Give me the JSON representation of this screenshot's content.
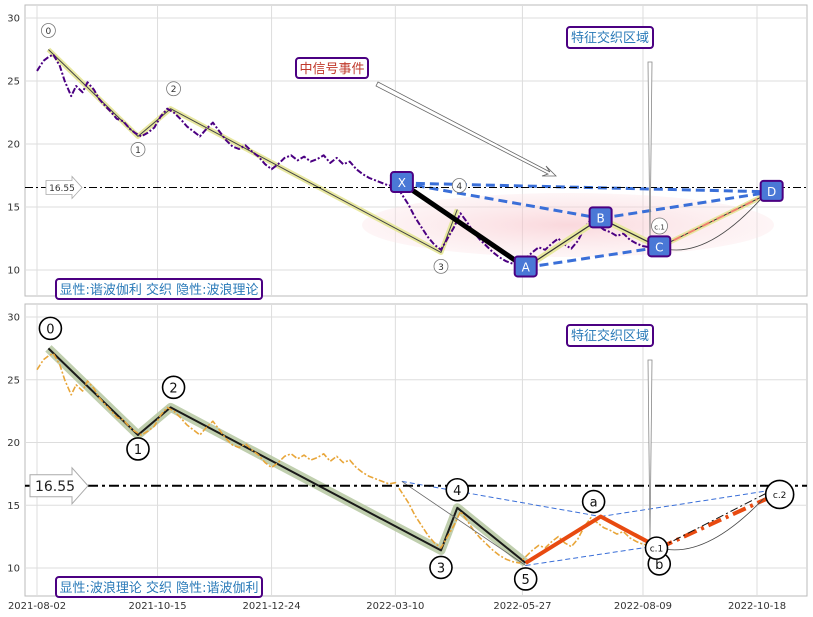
{
  "chart_data": {
    "type": "line",
    "x_ticks": [
      "2021-08-02",
      "2021-10-15",
      "2021-12-24",
      "2022-03-10",
      "2022-05-27",
      "2022-08-09",
      "2022-10-18"
    ],
    "ylim": [
      8,
      31
    ],
    "y_ticks": [
      10,
      15,
      20,
      25,
      30
    ],
    "grid": true,
    "reference_level": 16.55,
    "reference_label": "16.55",
    "price_series": [
      [
        "2021-08-02",
        25.8
      ],
      [
        "2021-08-06",
        26.6
      ],
      [
        "2021-08-09",
        26.9
      ],
      [
        "2021-08-12",
        27.1
      ],
      [
        "2021-08-16",
        26.2
      ],
      [
        "2021-08-19",
        25.0
      ],
      [
        "2021-08-23",
        23.8
      ],
      [
        "2021-08-26",
        24.6
      ],
      [
        "2021-08-30",
        24.1
      ],
      [
        "2021-09-02",
        24.9
      ],
      [
        "2021-09-06",
        24.3
      ],
      [
        "2021-09-09",
        23.6
      ],
      [
        "2021-09-13",
        23.0
      ],
      [
        "2021-09-16",
        22.6
      ],
      [
        "2021-09-20",
        22.0
      ],
      [
        "2021-09-24",
        21.8
      ],
      [
        "2021-09-28",
        21.2
      ],
      [
        "2021-10-01",
        20.9
      ],
      [
        "2021-10-05",
        20.6
      ],
      [
        "2021-10-09",
        20.9
      ],
      [
        "2021-10-13",
        21.3
      ],
      [
        "2021-10-17",
        22.2
      ],
      [
        "2021-10-21",
        22.8
      ],
      [
        "2021-10-25",
        22.5
      ],
      [
        "2021-10-29",
        22.0
      ],
      [
        "2021-11-02",
        21.4
      ],
      [
        "2021-11-06",
        21.0
      ],
      [
        "2021-11-10",
        20.6
      ],
      [
        "2021-11-14",
        21.2
      ],
      [
        "2021-11-18",
        21.7
      ],
      [
        "2021-11-22",
        21.0
      ],
      [
        "2021-11-26",
        20.3
      ],
      [
        "2021-11-30",
        19.8
      ],
      [
        "2021-12-04",
        19.6
      ],
      [
        "2021-12-08",
        19.9
      ],
      [
        "2021-12-12",
        19.4
      ],
      [
        "2021-12-16",
        19.0
      ],
      [
        "2021-12-20",
        18.4
      ],
      [
        "2021-12-24",
        18.0
      ],
      [
        "2021-12-28",
        18.4
      ],
      [
        "2022-01-01",
        18.9
      ],
      [
        "2022-01-05",
        19.1
      ],
      [
        "2022-01-09",
        18.7
      ],
      [
        "2022-01-13",
        19.0
      ],
      [
        "2022-01-17",
        18.6
      ],
      [
        "2022-01-21",
        18.8
      ],
      [
        "2022-01-25",
        19.1
      ],
      [
        "2022-01-29",
        18.5
      ],
      [
        "2022-02-02",
        18.9
      ],
      [
        "2022-02-06",
        18.4
      ],
      [
        "2022-02-10",
        18.6
      ],
      [
        "2022-02-14",
        18.0
      ],
      [
        "2022-02-18",
        17.6
      ],
      [
        "2022-02-22",
        17.3
      ],
      [
        "2022-02-26",
        17.1
      ],
      [
        "2022-03-02",
        16.9
      ],
      [
        "2022-03-06",
        16.7
      ],
      [
        "2022-03-10",
        16.8
      ],
      [
        "2022-03-14",
        16.0
      ],
      [
        "2022-03-18",
        15.2
      ],
      [
        "2022-03-22",
        14.2
      ],
      [
        "2022-03-26",
        13.4
      ],
      [
        "2022-03-30",
        12.6
      ],
      [
        "2022-04-03",
        12.0
      ],
      [
        "2022-04-07",
        11.6
      ],
      [
        "2022-04-11",
        12.5
      ],
      [
        "2022-04-15",
        13.4
      ],
      [
        "2022-04-19",
        14.5
      ],
      [
        "2022-04-23",
        13.8
      ],
      [
        "2022-04-27",
        13.0
      ],
      [
        "2022-05-01",
        12.4
      ],
      [
        "2022-05-05",
        11.9
      ],
      [
        "2022-05-09",
        11.4
      ],
      [
        "2022-05-13",
        11.0
      ],
      [
        "2022-05-17",
        10.7
      ],
      [
        "2022-05-21",
        10.5
      ],
      [
        "2022-05-25",
        10.4
      ],
      [
        "2022-05-29",
        10.9
      ],
      [
        "2022-06-02",
        11.4
      ],
      [
        "2022-06-06",
        11.8
      ],
      [
        "2022-06-10",
        11.6
      ],
      [
        "2022-06-14",
        12.1
      ],
      [
        "2022-06-18",
        12.5
      ],
      [
        "2022-06-22",
        12.0
      ],
      [
        "2022-06-26",
        11.7
      ],
      [
        "2022-06-30",
        12.3
      ],
      [
        "2022-07-04",
        13.3
      ],
      [
        "2022-07-08",
        14.0
      ],
      [
        "2022-07-12",
        13.6
      ],
      [
        "2022-07-16",
        13.2
      ],
      [
        "2022-07-20",
        13.0
      ],
      [
        "2022-07-24",
        12.7
      ],
      [
        "2022-07-28",
        12.9
      ],
      [
        "2022-08-01",
        12.4
      ],
      [
        "2022-08-05",
        12.1
      ],
      [
        "2022-08-09",
        11.9
      ],
      [
        "2022-08-13",
        11.8
      ],
      [
        "2022-08-17",
        11.6
      ]
    ],
    "panels": [
      {
        "caption": "显性:谐波伽利 交织 隐性:波浪理论",
        "event_label": "中信号事件",
        "zone_label": "特征交织区域",
        "harmonic_points": [
          {
            "label": "X",
            "x": "2022-03-14",
            "y": 16.9
          },
          {
            "label": "A",
            "x": "2022-05-29",
            "y": 10.2
          },
          {
            "label": "B",
            "x": "2022-07-14",
            "y": 14.1
          },
          {
            "label": "C",
            "x": "2022-08-19",
            "y": 11.8
          },
          {
            "label": "D",
            "x": "2022-10-27",
            "y": 16.2
          }
        ],
        "wave_points": [
          {
            "label": "0",
            "x": "2021-08-09",
            "y": 27.5
          },
          {
            "label": "1",
            "x": "2021-10-03",
            "y": 20.6
          },
          {
            "label": "2",
            "x": "2021-10-23",
            "y": 22.8
          },
          {
            "label": "3",
            "x": "2022-04-07",
            "y": 11.4
          },
          {
            "label": "4",
            "x": "2022-04-17",
            "y": 14.8
          },
          {
            "label": "c.1",
            "x": "2022-08-21",
            "y": 12.3
          }
        ]
      },
      {
        "caption": "显性:波浪理论 交织 隐性:谐波伽利",
        "zone_label": "特征交织区域",
        "wave_points": [
          {
            "label": "0",
            "x": "2021-08-09",
            "y": 27.5
          },
          {
            "label": "1",
            "x": "2021-10-03",
            "y": 20.6
          },
          {
            "label": "2",
            "x": "2021-10-23",
            "y": 22.8
          },
          {
            "label": "3",
            "x": "2022-04-07",
            "y": 11.4
          },
          {
            "label": "4",
            "x": "2022-04-17",
            "y": 14.8
          },
          {
            "label": "5",
            "x": "2022-05-29",
            "y": 10.4
          }
        ],
        "correction_points": [
          {
            "label": "a",
            "x": "2022-07-14",
            "y": 14.1
          },
          {
            "label": "b",
            "x": "2022-08-19",
            "y": 11.6
          },
          {
            "label": "c.1",
            "x": "2022-08-21",
            "y": 12.3
          },
          {
            "label": "c.2",
            "x": "2022-10-27",
            "y": 15.7
          }
        ]
      }
    ]
  }
}
